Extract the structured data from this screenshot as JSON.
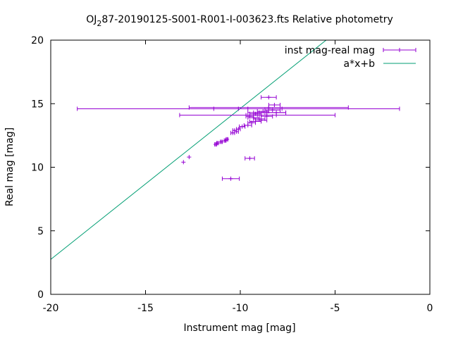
{
  "chart_data": {
    "type": "scatter",
    "title_main": "OJ",
    "title_sub": "2",
    "title_rest": "87-20190125-S001-R001-I-003623.fts Relative photometry",
    "xlabel": "Instrument mag [mag]",
    "ylabel": "Real mag [mag]",
    "xlim": [
      -20,
      0
    ],
    "ylim": [
      0,
      20
    ],
    "x_ticks": [
      "-20",
      "-15",
      "-10",
      "-5",
      "0"
    ],
    "y_ticks": [
      "0",
      "5",
      "10",
      "15",
      "20"
    ],
    "grid": false,
    "legend_position": "top-right",
    "colors": {
      "points": "#9400d3",
      "fit": "#009e73",
      "axis": "#000000"
    },
    "series": [
      {
        "name": "inst mag-real mag",
        "kind": "xerrorbars",
        "points": [
          {
            "x": -13.0,
            "y": 10.4,
            "xerr": 0.0
          },
          {
            "x": -12.7,
            "y": 10.8,
            "xerr": 0.0
          },
          {
            "x": -11.3,
            "y": 11.8,
            "xerr": 0.05
          },
          {
            "x": -11.2,
            "y": 11.9,
            "xerr": 0.05
          },
          {
            "x": -11.0,
            "y": 12.0,
            "xerr": 0.05
          },
          {
            "x": -10.8,
            "y": 12.1,
            "xerr": 0.05
          },
          {
            "x": -10.7,
            "y": 12.2,
            "xerr": 0.05
          },
          {
            "x": -10.4,
            "y": 12.7,
            "xerr": 0.1
          },
          {
            "x": -10.3,
            "y": 12.9,
            "xerr": 0.1
          },
          {
            "x": -10.2,
            "y": 12.8,
            "xerr": 0.1
          },
          {
            "x": -10.1,
            "y": 13.0,
            "xerr": 0.1
          },
          {
            "x": -9.9,
            "y": 13.2,
            "xerr": 0.15
          },
          {
            "x": -9.6,
            "y": 13.3,
            "xerr": 0.2
          },
          {
            "x": -9.4,
            "y": 13.5,
            "xerr": 0.2
          },
          {
            "x": -9.2,
            "y": 13.6,
            "xerr": 0.3
          },
          {
            "x": -9.0,
            "y": 13.8,
            "xerr": 0.3
          },
          {
            "x": -9.5,
            "y": 14.0,
            "xerr": 0.2
          },
          {
            "x": -9.2,
            "y": 14.2,
            "xerr": 0.3
          },
          {
            "x": -9.0,
            "y": 14.3,
            "xerr": 0.3
          },
          {
            "x": -8.8,
            "y": 14.4,
            "xerr": 0.3
          },
          {
            "x": -8.6,
            "y": 14.0,
            "xerr": 0.3
          },
          {
            "x": -8.9,
            "y": 13.7,
            "xerr": 0.3
          },
          {
            "x": -9.3,
            "y": 13.9,
            "xerr": 0.3
          },
          {
            "x": -8.3,
            "y": 14.5,
            "xerr": 0.4
          },
          {
            "x": -8.1,
            "y": 14.3,
            "xerr": 0.5
          },
          {
            "x": -8.2,
            "y": 14.9,
            "xerr": 0.3
          },
          {
            "x": -8.5,
            "y": 15.5,
            "xerr": 0.4
          },
          {
            "x": -9.5,
            "y": 10.7,
            "xerr": 0.25
          },
          {
            "x": -10.5,
            "y": 9.1,
            "xerr": 0.45
          },
          {
            "x": -10.1,
            "y": 14.6,
            "xerr": 8.5
          },
          {
            "x": -9.1,
            "y": 14.1,
            "xerr": 4.1
          },
          {
            "x": -8.5,
            "y": 14.7,
            "xerr": 4.2
          },
          {
            "x": -9.6,
            "y": 14.6,
            "xerr": 1.8
          },
          {
            "x": -8.6,
            "y": 14.3,
            "xerr": 1.0
          },
          {
            "x": -8.9,
            "y": 14.1,
            "xerr": 0.8
          }
        ]
      },
      {
        "name": "a*x+b",
        "kind": "line",
        "x": [
          -20,
          0
        ],
        "y": [
          2.75,
          26.5
        ]
      }
    ]
  }
}
